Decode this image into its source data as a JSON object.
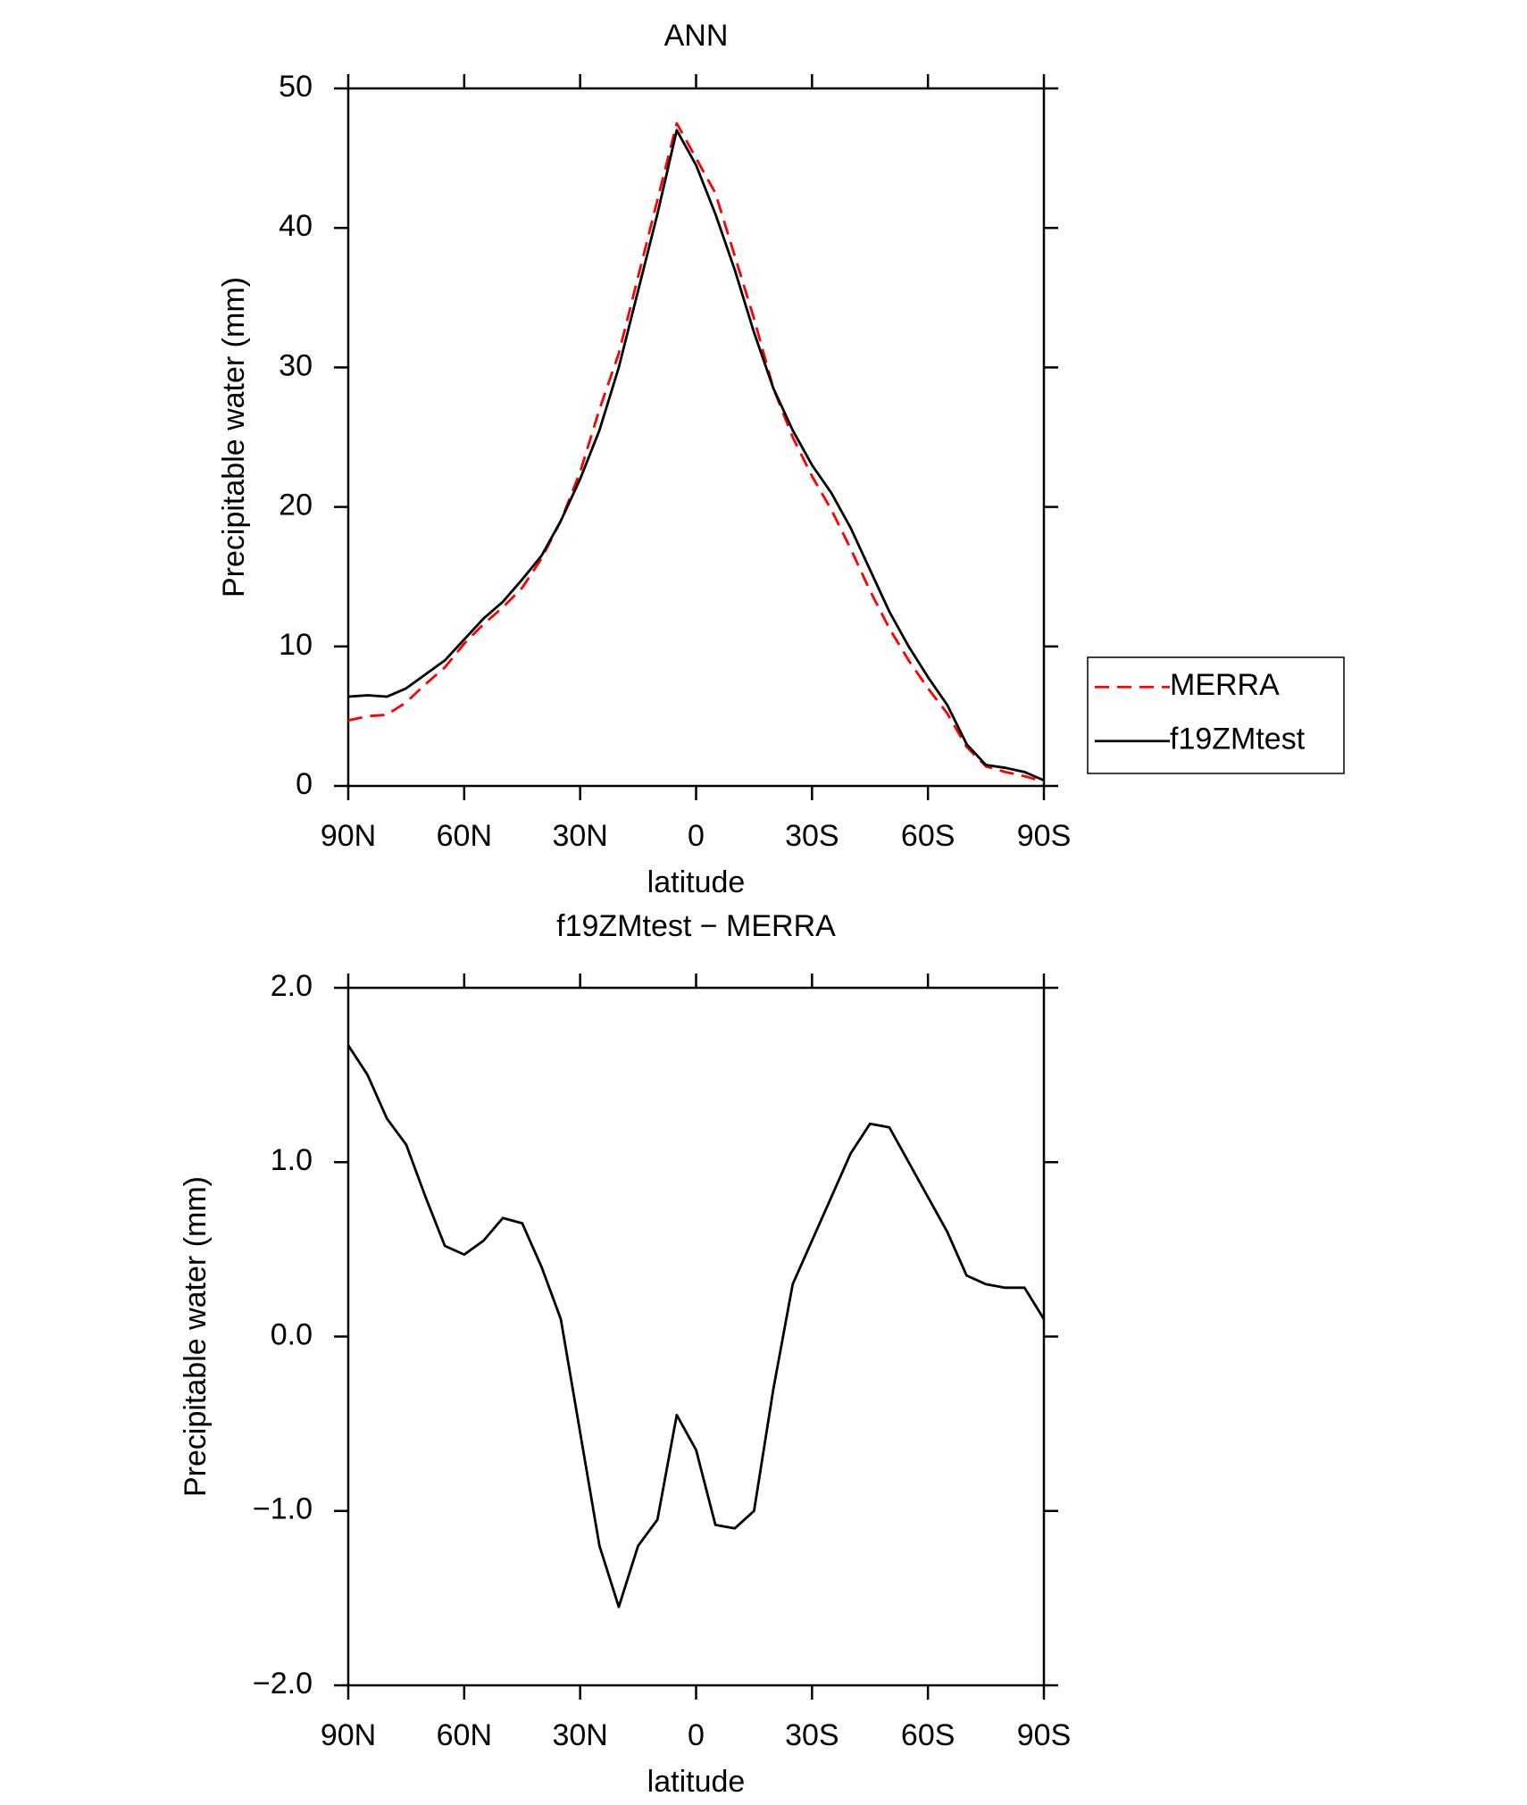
{
  "chart_data": [
    {
      "type": "line",
      "title": "ANN",
      "x_label": "latitude",
      "y_label": "Precipitable water (mm)",
      "x": [
        90,
        85,
        80,
        75,
        70,
        65,
        60,
        55,
        50,
        45,
        40,
        35,
        30,
        25,
        20,
        15,
        10,
        5,
        0,
        -5,
        -10,
        -15,
        -20,
        -25,
        -30,
        -35,
        -40,
        -45,
        -50,
        -55,
        -60,
        -65,
        -70,
        -75,
        -80,
        -85,
        -90
      ],
      "xlim": [
        90,
        -90
      ],
      "xticks": [
        {
          "value": 90,
          "label": "90N"
        },
        {
          "value": 60,
          "label": "60N"
        },
        {
          "value": 30,
          "label": "30N"
        },
        0,
        {
          "value": -30,
          "label": "30S"
        },
        {
          "value": -60,
          "label": "60S"
        },
        {
          "value": -90,
          "label": "90S"
        }
      ],
      "ylim": [
        0,
        50
      ],
      "yticks": [
        0,
        10,
        20,
        30,
        40,
        50
      ],
      "legend": "right",
      "series": [
        {
          "name": "MERRA",
          "color": "#ff0000",
          "line_style": "dashed",
          "values": [
            4.7,
            5.0,
            5.1,
            6.0,
            7.3,
            8.5,
            10.2,
            11.6,
            12.8,
            14.2,
            16.3,
            19.0,
            22.5,
            27.0,
            31.0,
            36.5,
            42.0,
            47.5,
            45.0,
            42.5,
            38.0,
            33.5,
            28.5,
            25.0,
            22.2,
            19.8,
            17.0,
            14.0,
            11.3,
            9.0,
            7.0,
            5.2,
            2.8,
            1.4,
            1.0,
            0.7,
            0.3
          ]
        },
        {
          "name": "f19ZMtest",
          "color": "#000000",
          "line_style": "solid",
          "values": [
            6.4,
            6.5,
            6.4,
            7.0,
            8.0,
            9.0,
            10.5,
            12.0,
            13.2,
            14.8,
            16.5,
            19.0,
            22.0,
            25.5,
            30.0,
            35.5,
            41.0,
            47.0,
            44.5,
            41.0,
            37.0,
            32.5,
            28.5,
            25.5,
            23.0,
            21.0,
            18.5,
            15.5,
            12.5,
            10.0,
            7.8,
            5.8,
            3.0,
            1.5,
            1.3,
            1.0,
            0.4
          ]
        }
      ]
    },
    {
      "type": "line",
      "title": "f19ZMtest − MERRA",
      "x_label": "latitude",
      "y_label": "Precipitable water (mm)",
      "x": [
        90,
        85,
        80,
        75,
        70,
        65,
        60,
        55,
        50,
        45,
        40,
        35,
        30,
        25,
        20,
        15,
        10,
        5,
        0,
        -5,
        -10,
        -15,
        -20,
        -25,
        -30,
        -35,
        -40,
        -45,
        -50,
        -55,
        -60,
        -65,
        -70,
        -75,
        -80,
        -85,
        -90
      ],
      "xlim": [
        90,
        -90
      ],
      "xticks": [
        {
          "value": 90,
          "label": "90N"
        },
        {
          "value": 60,
          "label": "60N"
        },
        {
          "value": 30,
          "label": "30N"
        },
        0,
        {
          "value": -30,
          "label": "30S"
        },
        {
          "value": -60,
          "label": "60S"
        },
        {
          "value": -90,
          "label": "90S"
        }
      ],
      "ylim": [
        -2.0,
        2.0
      ],
      "yticks": [
        {
          "value": -2.0,
          "label": "−2.0"
        },
        {
          "value": -1.0,
          "label": "−1.0"
        },
        {
          "value": 0.0,
          "label": "0.0"
        },
        {
          "value": 1.0,
          "label": "1.0"
        },
        {
          "value": 2.0,
          "label": "2.0"
        }
      ],
      "series": [
        {
          "name": "f19ZMtest − MERRA",
          "color": "#000000",
          "line_style": "solid",
          "values": [
            1.67,
            1.5,
            1.25,
            1.1,
            0.8,
            0.52,
            0.47,
            0.55,
            0.68,
            0.65,
            0.4,
            0.1,
            -0.55,
            -1.2,
            -1.55,
            -1.2,
            -1.05,
            -0.45,
            -0.65,
            -1.08,
            -1.1,
            -1.0,
            -0.3,
            0.3,
            0.55,
            0.8,
            1.05,
            1.22,
            1.2,
            1.0,
            0.8,
            0.6,
            0.35,
            0.3,
            0.28,
            0.28,
            0.1
          ]
        }
      ]
    }
  ]
}
